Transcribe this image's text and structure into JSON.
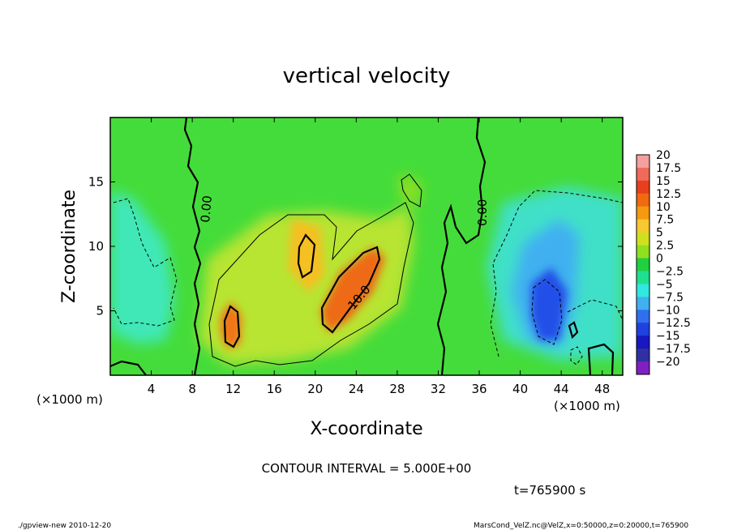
{
  "chart_data": {
    "type": "heatmap",
    "title": "vertical velocity",
    "xlabel": "X-coordinate",
    "ylabel": "Z-coordinate",
    "x_unit_left": "(×1000 m)",
    "x_unit_right": "(×1000 m)",
    "xlim": [
      0,
      50
    ],
    "ylim": [
      0,
      20
    ],
    "x_ticks": [
      4,
      8,
      12,
      16,
      20,
      24,
      28,
      32,
      36,
      40,
      44,
      48
    ],
    "y_ticks": [
      5,
      10,
      15
    ],
    "colorbar": {
      "levels": [
        "20",
        "17.5",
        "15",
        "12.5",
        "10",
        "7.5",
        "5",
        "2.5",
        "0",
        "−2.5",
        "−5",
        "−7.5",
        "−10",
        "−12.5",
        "−15",
        "−17.5",
        "−20"
      ],
      "colors": [
        "#f5a0a0",
        "#f06a5a",
        "#e8401e",
        "#f06a10",
        "#f59a10",
        "#f8c830",
        "#d0e020",
        "#90e020",
        "#20d040",
        "#20e090",
        "#30e8e0",
        "#40b0f0",
        "#3070f0",
        "#2040e0",
        "#1818c0",
        "#3030a0",
        "#8020c0"
      ]
    },
    "contour_labels": [
      "0.00",
      "10.0",
      "0.00"
    ],
    "contour_interval_text": "CONTOUR INTERVAL = 5.000E+00",
    "time_text": "t=765900 s",
    "footer_left": "./gpview-new  2010-12-20",
    "footer_right": "MarsCond_VelZ.nc@VelZ,x=0:50000,z=0:20000,t=765900"
  }
}
